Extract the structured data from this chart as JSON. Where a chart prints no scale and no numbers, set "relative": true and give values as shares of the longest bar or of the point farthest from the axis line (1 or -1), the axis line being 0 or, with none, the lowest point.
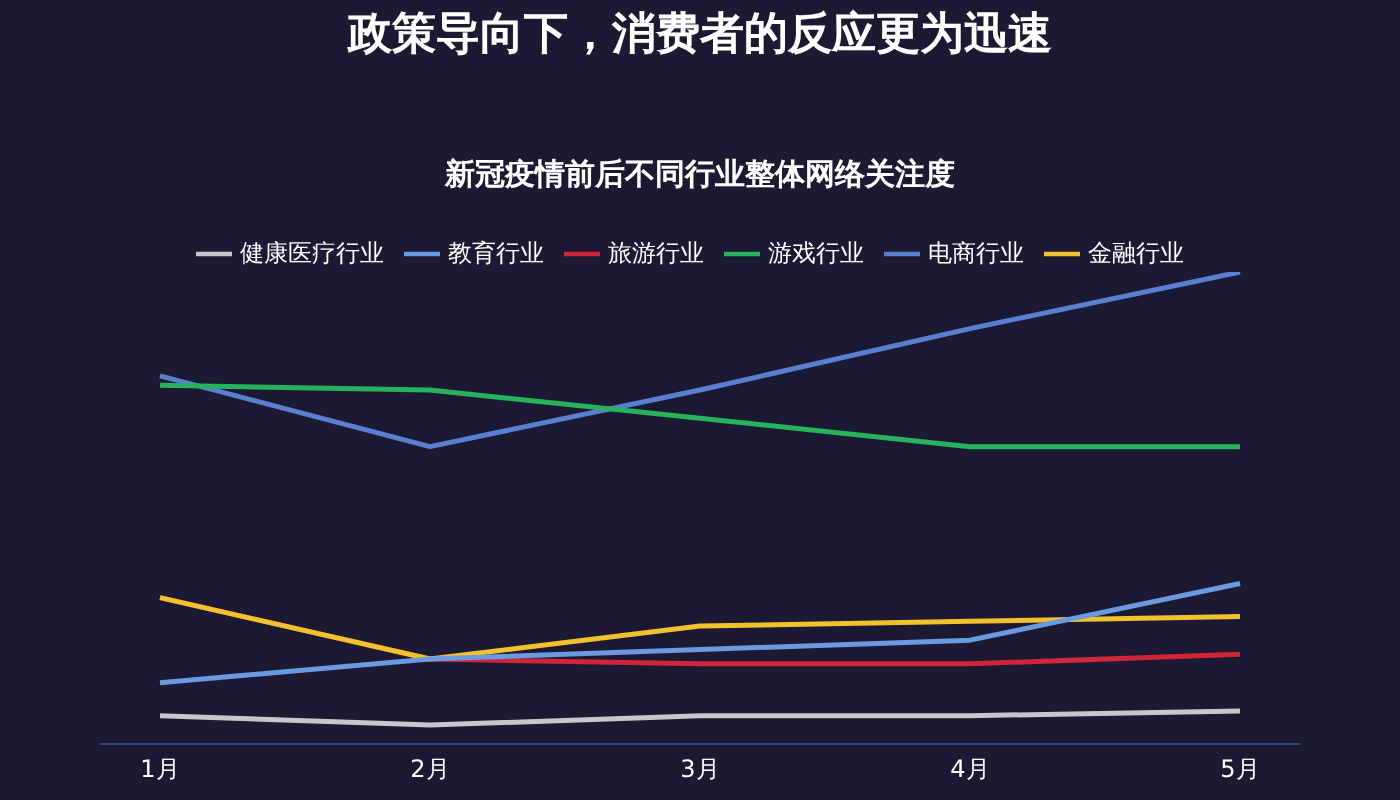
{
  "chart_data": {
    "type": "line",
    "title": "政策导向下，消费者的反应更为迅速",
    "subtitle": "新冠疫情前后不同行业整体网络关注度",
    "relative": true,
    "categories": [
      "1月",
      "2月",
      "3月",
      "4月",
      "5月"
    ],
    "series": [
      {
        "name": "电商行业",
        "color": "#5a7fd0",
        "values": [
          0.78,
          0.63,
          0.75,
          0.88,
          1
        ]
      },
      {
        "name": "游戏行业",
        "color": "#27b35d",
        "values": [
          0.76,
          0.75,
          0.69,
          0.63,
          0.63
        ]
      },
      {
        "name": "旅游行业",
        "color": "#d0253a",
        "values": [
          0.31,
          0.18,
          0.17,
          0.17,
          0.19
        ]
      },
      {
        "name": "金融行业",
        "color": "#f2c12e",
        "values": [
          0.31,
          0.18,
          0.25,
          0.26,
          0.27
        ]
      },
      {
        "name": "教育行业",
        "color": "#6b9ae0",
        "values": [
          0.13,
          0.18,
          0.2,
          0.22,
          0.34
        ]
      },
      {
        "name": "健康医疗行业",
        "color": "#c8c8cc",
        "values": [
          0.06,
          0.04,
          0.06,
          0.06,
          0.07
        ]
      }
    ],
    "legend": "top",
    "grid": false,
    "marker": "none",
    "line_style": "solid"
  }
}
